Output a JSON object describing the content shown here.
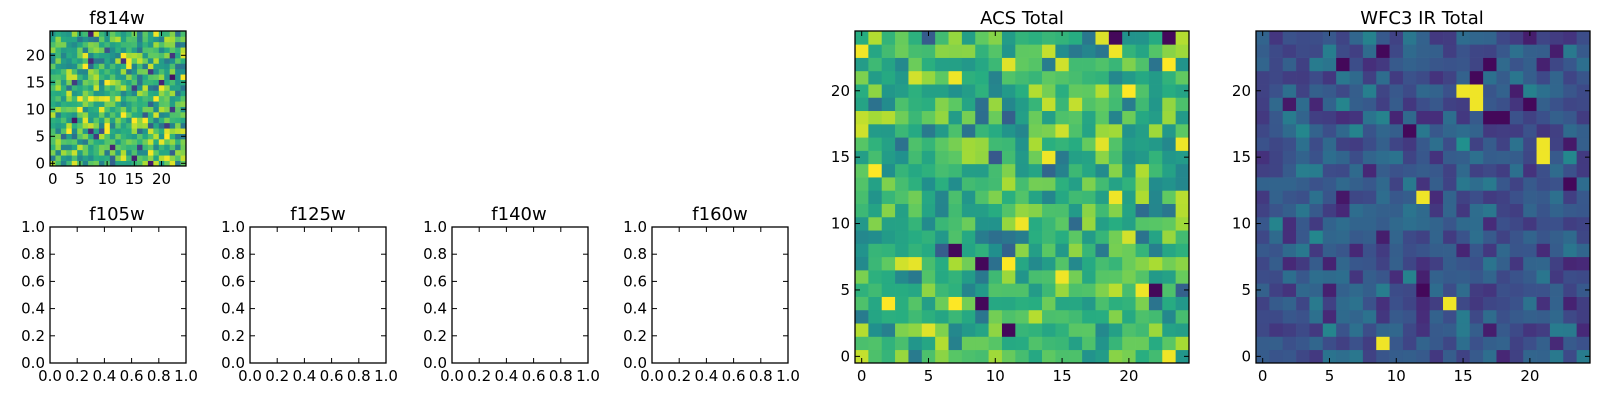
{
  "figure": {
    "background": "#ffffff",
    "colormap": "viridis"
  },
  "chart_data": [
    {
      "id": "f814w",
      "type": "heatmap",
      "title": "f814w",
      "grid_size": [
        25,
        25
      ],
      "xlim": [
        -0.5,
        24.5
      ],
      "ylim": [
        -0.5,
        24.5
      ],
      "xticks": [
        0,
        5,
        10,
        15,
        20
      ],
      "yticks": [
        0,
        5,
        10,
        15,
        20
      ],
      "value_range": [
        0.0,
        1.0
      ],
      "value_mean": 0.68,
      "value_spread": 0.2,
      "note": "noise-like pixel field, mostly green/yellow with sparse dark-purple pixels"
    },
    {
      "id": "f105w",
      "type": "heatmap",
      "title": "f105w",
      "empty": true,
      "xlim": [
        0,
        1
      ],
      "ylim": [
        0,
        1
      ],
      "xticks": [
        "0.0",
        "0.2",
        "0.4",
        "0.6",
        "0.8",
        "1.0"
      ],
      "yticks": [
        "0.0",
        "0.2",
        "0.4",
        "0.6",
        "0.8",
        "1.0"
      ]
    },
    {
      "id": "f125w",
      "type": "heatmap",
      "title": "f125w",
      "empty": true,
      "xlim": [
        0,
        1
      ],
      "ylim": [
        0,
        1
      ],
      "xticks": [
        "0.0",
        "0.2",
        "0.4",
        "0.6",
        "0.8",
        "1.0"
      ],
      "yticks": [
        "0.0",
        "0.2",
        "0.4",
        "0.6",
        "0.8",
        "1.0"
      ]
    },
    {
      "id": "f140w",
      "type": "heatmap",
      "title": "f140w",
      "empty": true,
      "xlim": [
        0,
        1
      ],
      "ylim": [
        0,
        1
      ],
      "xticks": [
        "0.0",
        "0.2",
        "0.4",
        "0.6",
        "0.8",
        "1.0"
      ],
      "yticks": [
        "0.0",
        "0.2",
        "0.4",
        "0.6",
        "0.8",
        "1.0"
      ]
    },
    {
      "id": "f160w",
      "type": "heatmap",
      "title": "f160w",
      "empty": true,
      "xlim": [
        0,
        1
      ],
      "ylim": [
        0,
        1
      ],
      "xticks": [
        "0.0",
        "0.2",
        "0.4",
        "0.6",
        "0.8",
        "1.0"
      ],
      "yticks": [
        "0.0",
        "0.2",
        "0.4",
        "0.6",
        "0.8",
        "1.0"
      ]
    },
    {
      "id": "acs-total",
      "type": "heatmap",
      "title": "ACS Total",
      "grid_size": [
        25,
        25
      ],
      "xlim": [
        -0.5,
        24.5
      ],
      "ylim": [
        -0.5,
        24.5
      ],
      "xticks": [
        0,
        5,
        10,
        15,
        20
      ],
      "yticks": [
        0,
        5,
        10,
        15,
        20
      ],
      "value_range": [
        0.0,
        1.0
      ],
      "value_mean": 0.66,
      "value_spread": 0.18,
      "hot_pixels": [
        [
          7,
          21
        ],
        [
          14,
          15
        ],
        [
          19,
          12
        ],
        [
          12,
          10
        ],
        [
          15,
          6
        ],
        [
          21,
          5
        ],
        [
          23,
          0
        ]
      ],
      "dark_pixels": [
        [
          23,
          24
        ],
        [
          19,
          24
        ],
        [
          7,
          8
        ],
        [
          9,
          7
        ],
        [
          9,
          4
        ],
        [
          11,
          2
        ],
        [
          22,
          5
        ]
      ]
    },
    {
      "id": "wfc3-ir-total",
      "type": "heatmap",
      "title": "WFC3 IR Total",
      "grid_size": [
        25,
        25
      ],
      "xlim": [
        -0.5,
        24.5
      ],
      "ylim": [
        -0.5,
        24.5
      ],
      "xticks": [
        0,
        5,
        10,
        15,
        20
      ],
      "yticks": [
        0,
        5,
        10,
        15,
        20
      ],
      "value_range": [
        0.0,
        1.0
      ],
      "value_mean": 0.27,
      "value_spread": 0.1,
      "hot_pixels": [
        [
          15,
          20
        ],
        [
          16,
          20
        ],
        [
          16,
          19
        ],
        [
          21,
          16
        ],
        [
          21,
          15
        ],
        [
          12,
          12
        ],
        [
          9,
          1
        ],
        [
          14,
          4
        ]
      ],
      "dark_pixels": [
        [
          9,
          23
        ],
        [
          17,
          22
        ],
        [
          6,
          22
        ],
        [
          16,
          21
        ],
        [
          20,
          19
        ],
        [
          17,
          18
        ],
        [
          18,
          18
        ],
        [
          11,
          17
        ],
        [
          23,
          13
        ],
        [
          12,
          5
        ]
      ]
    }
  ]
}
